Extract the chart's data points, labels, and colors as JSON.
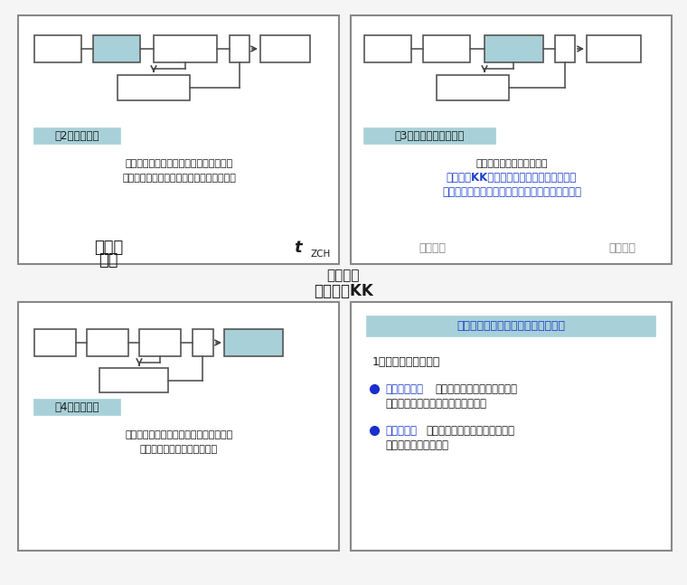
{
  "bg_color": "#f5f5f5",
  "panel_bg": "#ffffff",
  "panel_border": "#888888",
  "box_fc": "#ffffff",
  "box_ec": "#555555",
  "highlight_fc": "#a8d0d8",
  "label_bg": "#a8d0d8",
  "text_dark": "#1a1a1a",
  "text_blue": "#1a3fcc",
  "text_gray": "#888888",
  "panel1": {
    "label": "（2）延时元件",
    "desc1": "保证故障点有足够的去游离时间和断路器",
    "desc2": "消弧室及传动机构准备好再次动作的时间。",
    "bl1": "重合闸",
    "bl2": "起动",
    "br": "t",
    "br_sub": "ZCH"
  },
  "panel2": {
    "label": "（3）一次合闸脉冲元件",
    "desc1": "保证重合闸装置只重合一次",
    "desc2": "控制开关KK对一次合闸脉冲元件放电的作用",
    "desc3": "是为了防止手动跳闸和手动合闸时重合闸进行重合",
    "bl": "脉冲元件",
    "br": "执行元件"
  },
  "title_放电": "（放电）",
  "title_kk": "控制开关KK",
  "panel3": {
    "label": "（4）执行元件",
    "desc1": "启动合闸回路和信号回路，还可与保护配",
    "desc2": "合，实现重合闸后加速保护。"
  },
  "panel4": {
    "title": "二、双侧电源线路的三相一次重合闸",
    "item1": "1、应考虑的两个问题",
    "b1_lbl": "时间的配合：",
    "b1_t1": "线路两侧的重合闸必须保证在",
    "b1_t2": "两侧的断路器都跳闸后再进行重合。",
    "b2_lbl": "同期问题：",
    "b2_t1": "重合闸时两侧电源是否同步以及",
    "b2_t2": "是否允许非同步合闸。"
  }
}
